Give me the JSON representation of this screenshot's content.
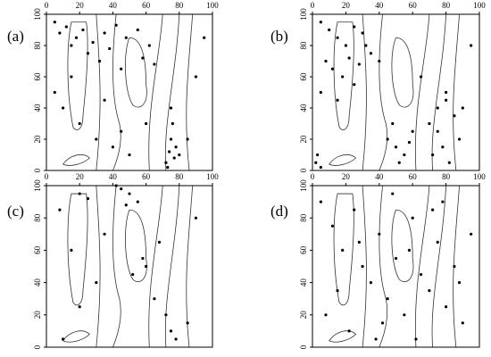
{
  "chart_data": [
    {
      "type": "scatter",
      "title": "(a)",
      "color": "#000000",
      "xlim": [
        0,
        100
      ],
      "ylim": [
        0,
        100
      ],
      "xticks": [
        0,
        20,
        40,
        60,
        80,
        100
      ],
      "yticks": [
        0,
        20,
        40,
        60,
        80,
        100
      ],
      "x": [
        5,
        8,
        12,
        15,
        18,
        22,
        25,
        28,
        32,
        35,
        38,
        42,
        45,
        48,
        55,
        58,
        62,
        65,
        5,
        10,
        20,
        30,
        40,
        50,
        72,
        74,
        75,
        76,
        77,
        78,
        75,
        73,
        80,
        85,
        90,
        95,
        60,
        45,
        35,
        15
      ],
      "y": [
        95,
        88,
        92,
        80,
        85,
        90,
        75,
        82,
        70,
        88,
        78,
        93,
        65,
        85,
        90,
        72,
        80,
        68,
        50,
        40,
        30,
        20,
        15,
        10,
        5,
        12,
        20,
        30,
        8,
        15,
        40,
        2,
        10,
        20,
        60,
        85,
        30,
        25,
        45,
        60
      ]
    },
    {
      "type": "scatter",
      "title": "(b)",
      "color": "#000000",
      "xlim": [
        0,
        100
      ],
      "ylim": [
        0,
        100
      ],
      "xticks": [
        0,
        20,
        40,
        60,
        80,
        100
      ],
      "yticks": [
        0,
        20,
        40,
        60,
        80,
        100
      ],
      "x": [
        5,
        10,
        15,
        20,
        25,
        30,
        35,
        8,
        12,
        18,
        22,
        28,
        32,
        5,
        15,
        25,
        3,
        45,
        50,
        55,
        60,
        48,
        52,
        58,
        70,
        75,
        80,
        85,
        72,
        78,
        82,
        88,
        75,
        80,
        90,
        65,
        40,
        2,
        5,
        95
      ],
      "y": [
        95,
        90,
        85,
        80,
        92,
        88,
        75,
        70,
        65,
        60,
        72,
        68,
        80,
        50,
        45,
        55,
        10,
        20,
        15,
        10,
        25,
        30,
        5,
        18,
        30,
        40,
        45,
        35,
        10,
        15,
        5,
        20,
        25,
        50,
        40,
        60,
        70,
        5,
        2,
        80
      ]
    },
    {
      "type": "scatter",
      "title": "(c)",
      "color": "#000000",
      "xlim": [
        0,
        100
      ],
      "ylim": [
        0,
        100
      ],
      "xticks": [
        0,
        20,
        40,
        60,
        80,
        100
      ],
      "yticks": [
        0,
        20,
        40,
        60,
        80,
        100
      ],
      "x": [
        20,
        25,
        45,
        50,
        55,
        42,
        48,
        8,
        15,
        30,
        60,
        65,
        72,
        75,
        78,
        85,
        10,
        35,
        52,
        58,
        20,
        90,
        68
      ],
      "y": [
        95,
        92,
        98,
        95,
        90,
        100,
        88,
        85,
        60,
        40,
        50,
        30,
        20,
        10,
        5,
        15,
        5,
        70,
        45,
        55,
        25,
        80,
        65
      ]
    },
    {
      "type": "scatter",
      "title": "(d)",
      "color": "#000000",
      "xlim": [
        0,
        100
      ],
      "ylim": [
        0,
        100
      ],
      "xticks": [
        0,
        20,
        40,
        60,
        80,
        100
      ],
      "yticks": [
        0,
        20,
        40,
        60,
        80,
        100
      ],
      "x": [
        5,
        12,
        18,
        25,
        30,
        35,
        40,
        45,
        50,
        55,
        60,
        65,
        70,
        75,
        80,
        85,
        90,
        95,
        8,
        22,
        38,
        48,
        58,
        72,
        88,
        15,
        28,
        42,
        62,
        78
      ],
      "y": [
        90,
        75,
        60,
        85,
        50,
        40,
        70,
        30,
        55,
        20,
        80,
        45,
        35,
        65,
        25,
        50,
        15,
        70,
        20,
        10,
        5,
        95,
        60,
        85,
        40,
        35,
        65,
        15,
        5,
        90
      ]
    }
  ]
}
